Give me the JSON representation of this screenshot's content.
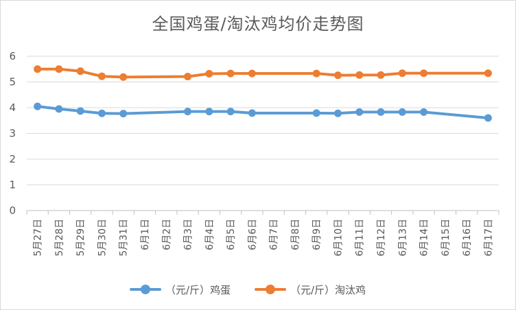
{
  "chart_data": {
    "type": "line",
    "title": "全国鸡蛋/淘汰鸡均价走势图",
    "xlabel": "",
    "ylabel": "",
    "ylim": [
      0,
      6
    ],
    "yticks": [
      0,
      1,
      2,
      3,
      4,
      5,
      6
    ],
    "grid": true,
    "legend_position": "bottom",
    "categories": [
      "5月27日",
      "5月28日",
      "5月29日",
      "5月30日",
      "5月31日",
      "6月1日",
      "6月2日",
      "6月3日",
      "6月4日",
      "6月5日",
      "6月6日",
      "6月7日",
      "6月8日",
      "6月9日",
      "6月10日",
      "6月11日",
      "6月12日",
      "6月13日",
      "6月14日",
      "6月15日",
      "6月16日",
      "6月17日"
    ],
    "series": [
      {
        "name": "（元/斤）鸡蛋",
        "color": "#5B9BD5",
        "values": [
          4.05,
          3.95,
          3.87,
          3.78,
          3.77,
          null,
          null,
          3.85,
          3.85,
          3.85,
          3.79,
          null,
          null,
          3.79,
          3.78,
          3.83,
          3.83,
          3.83,
          3.83,
          null,
          null,
          3.6
        ]
      },
      {
        "name": "（元/斤）淘汰鸡",
        "color": "#ED7D31",
        "values": [
          5.5,
          5.5,
          5.42,
          5.22,
          5.19,
          null,
          null,
          5.21,
          5.32,
          5.33,
          5.33,
          null,
          null,
          5.33,
          5.26,
          5.27,
          5.27,
          5.34,
          5.34,
          null,
          null,
          5.34
        ]
      }
    ]
  }
}
